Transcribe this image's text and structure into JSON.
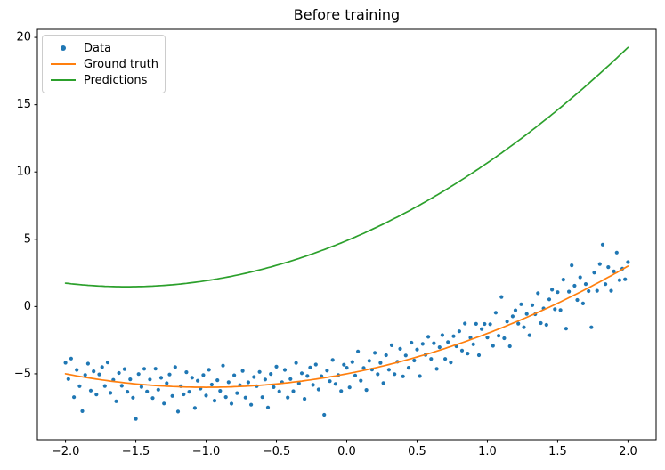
{
  "chart_data": {
    "type": "scatter",
    "title": "Before training",
    "axis": {
      "xlim": [
        -2.2,
        2.2
      ],
      "ylim": [
        -9.9,
        20.6
      ],
      "xticks": [
        {
          "v": -2.0,
          "label": "−2.0"
        },
        {
          "v": -1.5,
          "label": "−1.5"
        },
        {
          "v": -1.0,
          "label": "−1.0"
        },
        {
          "v": -0.5,
          "label": "−0.5"
        },
        {
          "v": 0.0,
          "label": "0.0"
        },
        {
          "v": 0.5,
          "label": "0.5"
        },
        {
          "v": 1.0,
          "label": "1.0"
        },
        {
          "v": 1.5,
          "label": "1.5"
        },
        {
          "v": 2.0,
          "label": "2.0"
        }
      ],
      "yticks": [
        {
          "v": -5,
          "label": "−5"
        },
        {
          "v": 0,
          "label": "0"
        },
        {
          "v": 5,
          "label": "5"
        },
        {
          "v": 10,
          "label": "10"
        },
        {
          "v": 15,
          "label": "15"
        },
        {
          "v": 20,
          "label": "20"
        }
      ],
      "grid": false,
      "spine_color": "#000000",
      "tick_label_color": "#000000"
    },
    "legend_position": "upper left",
    "series": [
      {
        "name": "Data",
        "type": "scatter",
        "color": "#1f77b4",
        "marker": "dot",
        "marker_radius": 2.1,
        "x_start": -2.0,
        "x_step": 0.02,
        "n": 201,
        "base_poly": [
          -5,
          2,
          1
        ],
        "noise": [
          0.82,
          -0.35,
          1.21,
          -1.62,
          0.45,
          -0.73,
          -2.55,
          0.18,
          1.05,
          -0.92,
          0.55,
          -1.15,
          0.38,
          0.95,
          -0.42,
          1.35,
          -0.88,
          0.12,
          -1.45,
          0.68,
          -0.25,
          1.02,
          -0.65,
          0.3,
          -1.05,
          -2.6,
          0.75,
          -0.18,
          1.18,
          -0.5,
          0.42,
          -0.95,
          1.25,
          -0.3,
          0.6,
          -1.3,
          0.22,
          0.88,
          -0.7,
          1.45,
          -1.85,
          0.05,
          -0.55,
          1.1,
          -0.35,
          0.7,
          -1.55,
          0.48,
          -0.1,
          0.9,
          -0.62,
          1.3,
          0.2,
          -1.0,
          0.52,
          -0.28,
          1.6,
          -0.75,
          0.35,
          -1.25,
          0.85,
          -0.48,
          0.1,
          1.15,
          -0.85,
          0.28,
          -1.4,
          0.65,
          -0.05,
          1.0,
          -0.9,
          0.4,
          -1.7,
          0.78,
          -0.22,
          1.28,
          -0.58,
          0.08,
          0.98,
          -1.1,
          0.25,
          -0.68,
          1.4,
          -0.15,
          0.58,
          -1.35,
          0.32,
          0.92,
          -0.4,
          1.08,
          -0.8,
          0.15,
          -2.75,
          0.5,
          -0.32,
          1.22,
          -0.6,
          0.02,
          -1.2,
          0.72,
          0.45,
          -1.05,
          0.8,
          -0.25,
          1.5,
          -0.72,
          0.18,
          -1.5,
          0.62,
          -0.08,
          1.12,
          -0.52,
          0.28,
          -1.28,
          0.75,
          -0.38,
          1.38,
          -0.82,
          0.05,
          0.95,
          -1.15,
          0.35,
          -0.62,
          1.18,
          -0.2,
          0.55,
          -1.48,
          0.85,
          -0.02,
          1.25,
          -0.45,
          0.65,
          -1.32,
          0.22,
          1.05,
          -0.78,
          0.4,
          -1.18,
          0.7,
          -0.12,
          0.92,
          -0.58,
          1.35,
          -0.95,
          0.15,
          -0.42,
          1.02,
          -1.38,
          0.48,
          0.78,
          -0.3,
          0.6,
          -1.08,
          1.3,
          -0.5,
          2.3,
          -0.85,
          0.3,
          -1.62,
          0.52,
          0.88,
          -0.2,
          1.15,
          -0.65,
          0.25,
          -1.42,
          0.72,
          -0.05,
          1.42,
          -0.9,
          0.1,
          -1.22,
          0.58,
          1.2,
          -0.35,
          0.82,
          -0.62,
          1.55,
          -2.2,
          0.45,
          2.3,
          0.68,
          -0.48,
          1.1,
          -0.95,
          0.38,
          -0.25,
          -3.05,
          0.9,
          -0.55,
          1.32,
          2.65,
          -0.4,
          0.75,
          -1.12,
          0.2,
          1.48,
          -0.68,
          0.05,
          -0.85,
          0.3
        ]
      },
      {
        "name": "Ground truth",
        "type": "line",
        "color": "#ff7f0e",
        "line_width": 1.7,
        "poly": [
          -5,
          2,
          1
        ],
        "x_range": [
          -2,
          2
        ]
      },
      {
        "name": "Predictions",
        "type": "line",
        "color": "#2ca02c",
        "line_width": 1.7,
        "poly": [
          4.9,
          4.38,
          1.4
        ],
        "x_range": [
          -2,
          2
        ]
      }
    ]
  }
}
